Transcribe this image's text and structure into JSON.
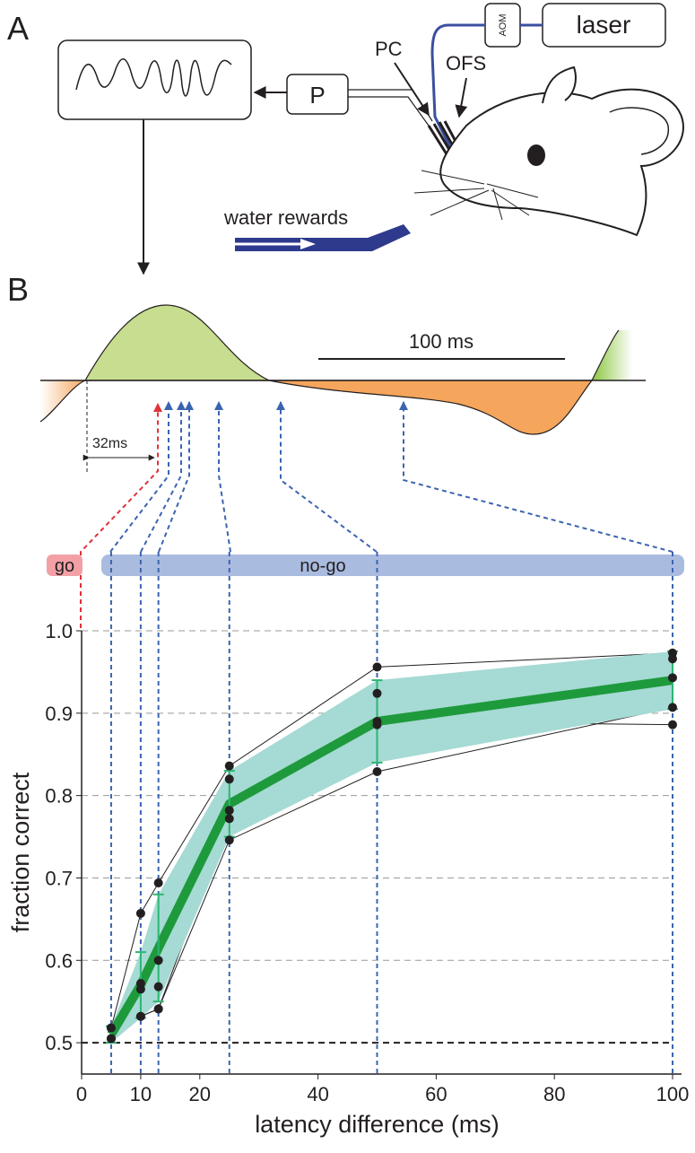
{
  "panel_a": {
    "label": "A",
    "laser": "laser",
    "aom": "AOM",
    "pc": "PC",
    "ofs": "OFS",
    "p": "P",
    "water": "water rewards"
  },
  "panel_b": {
    "label": "B",
    "scale_bar": "100 ms",
    "delay": "32ms",
    "go": "go",
    "nogo": "no-go"
  },
  "chart_data": {
    "type": "line",
    "xlabel": "latency difference (ms)",
    "ylabel": "fraction correct",
    "x": [
      5,
      10,
      13,
      25,
      50,
      100
    ],
    "xlim": [
      0,
      100
    ],
    "xticks": [
      0,
      10,
      20,
      40,
      60,
      80,
      100
    ],
    "ylim": [
      0.462,
      1.0
    ],
    "yticks": [
      0.5,
      0.6,
      0.7,
      0.8,
      0.9,
      {
        "value": 1.0,
        "label": "1.0"
      }
    ],
    "grid": true,
    "series": [
      {
        "color": "#231f20",
        "values": [
          0.518,
          0.657,
          0.694,
          0.836,
          0.956,
          0.973
        ]
      },
      {
        "color": "#231f20",
        "values": [
          0.518,
          0.572,
          0.6,
          0.82,
          0.924,
          0.966
        ]
      },
      {
        "color": "#231f20",
        "values": [
          0.505,
          0.565,
          0.568,
          0.782,
          0.89,
          0.886
        ]
      },
      {
        "color": "#231f20",
        "values": [
          0.505,
          0.532,
          0.541,
          0.772,
          0.886,
          0.943
        ]
      },
      {
        "color": "#231f20",
        "values": [
          0.505,
          0.532,
          0.541,
          0.746,
          0.829,
          0.907
        ]
      },
      {
        "color": "#1e9a3c",
        "band_color": "#a6dad4",
        "values": [
          0.51,
          0.57,
          0.615,
          0.79,
          0.89,
          0.94
        ],
        "error": [
          0.01,
          0.04,
          0.065,
          0.04,
          0.05,
          0.035
        ]
      }
    ]
  }
}
